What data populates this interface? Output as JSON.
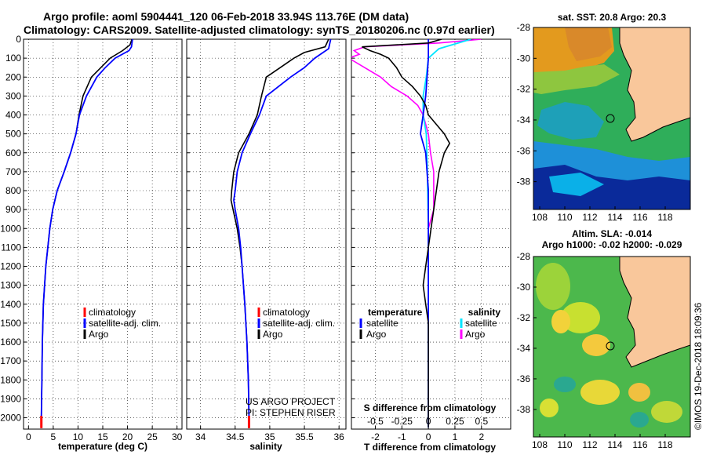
{
  "header": {
    "line1": "Argo profile: aoml 5904441_120 06-Feb-2018 33.94S 113.76E (DM data)",
    "line2": "Climatology: CARS2009. Satellite-adjusted climatology: synTS_20180206.nc (0.97d earlier)"
  },
  "depth_ticks": [
    "0",
    "100",
    "200",
    "300",
    "400",
    "500",
    "600",
    "700",
    "800",
    "900",
    "1000",
    "1100",
    "1200",
    "1300",
    "1400",
    "1500",
    "1600",
    "1700",
    "1800",
    "1900",
    "2000"
  ],
  "colors": {
    "climatology": "#ff0000",
    "satellite": "#0000ff",
    "argo": "#000000",
    "sat_salinity": "#00e5ff",
    "argo_salinity": "#ff00ff",
    "land": "#f9c79b"
  },
  "chart_data": [
    {
      "type": "line",
      "panel": "temperature",
      "xlabel": "temperature (deg C)",
      "xlim": [
        -1,
        31
      ],
      "xticks": [
        "0",
        "5",
        "10",
        "15",
        "20",
        "25",
        "30"
      ],
      "ylim": [
        2060,
        0
      ],
      "legend": [
        "climatology",
        "satellite-adj. clim.",
        "Argo"
      ],
      "series": [
        {
          "name": "satellite-adj. clim.",
          "depth": [
            0,
            40,
            60,
            100,
            150,
            200,
            300,
            400,
            500,
            600,
            700,
            800,
            900,
            1000,
            1200,
            1400,
            1600,
            1800,
            2000,
            2050
          ],
          "values": [
            21,
            20.8,
            20.3,
            17.5,
            15.5,
            13.8,
            11.7,
            10.3,
            9.6,
            8.5,
            7.2,
            5.8,
            4.9,
            4.3,
            3.5,
            3.0,
            2.8,
            2.7,
            2.6,
            2.6
          ]
        },
        {
          "name": "Argo",
          "depth": [
            0,
            30,
            60,
            100,
            200,
            300,
            400,
            500,
            600,
            700,
            800,
            900,
            1000,
            1200,
            1400,
            1600,
            1800,
            2000,
            2050
          ],
          "values": [
            20.9,
            20.5,
            19.0,
            16.5,
            12.7,
            11.0,
            10.2,
            9.6,
            8.5,
            7.2,
            5.8,
            4.9,
            4.3,
            3.5,
            3.0,
            2.8,
            2.7,
            2.6,
            2.6
          ]
        },
        {
          "name": "climatology",
          "depth": [
            0,
            40,
            100,
            200,
            400,
            600,
            800,
            1000,
            1400,
            2000,
            2050
          ],
          "values": [
            21,
            20.8,
            17.5,
            13.8,
            10.3,
            8.5,
            5.8,
            4.3,
            3.0,
            2.6,
            2.6
          ]
        }
      ]
    },
    {
      "type": "line",
      "panel": "salinity",
      "xlabel": "salinity",
      "xlim": [
        33.8,
        36.1
      ],
      "xticks": [
        "34",
        "34.5",
        "35",
        "35.5",
        "36"
      ],
      "ylim": [
        2060,
        0
      ],
      "legend": [
        "climatology",
        "satellite-adj. clim.",
        "Argo"
      ],
      "annotation": [
        "US ARGO PROJECT",
        "PI: STEPHEN RISER"
      ],
      "series": [
        {
          "name": "satellite-adj. clim.",
          "depth": [
            0,
            50,
            100,
            150,
            200,
            300,
            400,
            500,
            600,
            700,
            800,
            850,
            900,
            1000,
            1100,
            1200,
            1400,
            1600,
            1800,
            2000,
            2050
          ],
          "values": [
            35.88,
            35.85,
            35.65,
            35.5,
            35.3,
            34.95,
            34.85,
            34.72,
            34.6,
            34.53,
            34.5,
            34.48,
            34.5,
            34.55,
            34.58,
            34.6,
            34.64,
            34.67,
            34.69,
            34.7,
            34.7
          ]
        },
        {
          "name": "Argo",
          "depth": [
            0,
            40,
            70,
            100,
            150,
            200,
            300,
            400,
            500,
            600,
            700,
            800,
            850,
            900,
            1000,
            1100,
            1200,
            1400,
            1600,
            1800,
            2000,
            2050
          ],
          "values": [
            35.85,
            35.8,
            35.5,
            35.35,
            35.15,
            34.95,
            34.88,
            34.82,
            34.7,
            34.55,
            34.48,
            34.45,
            34.44,
            34.47,
            34.53,
            34.57,
            34.6,
            34.64,
            34.67,
            34.69,
            34.7,
            34.7
          ]
        },
        {
          "name": "climatology",
          "depth": [
            0,
            100,
            200,
            400,
            600,
            800,
            1000,
            1400,
            2000,
            2050
          ],
          "values": [
            35.88,
            35.65,
            35.3,
            34.85,
            34.6,
            34.5,
            34.55,
            34.64,
            34.7,
            34.7
          ]
        }
      ]
    },
    {
      "type": "line",
      "panel": "difference",
      "xlabel": "T difference from climatology",
      "xlabel2": "S difference from climatology",
      "xlim": [
        -2.9,
        3.1
      ],
      "xticks": [
        "-2",
        "-1",
        "0",
        "1",
        "2"
      ],
      "xticks_s": [
        "-0.5",
        "-0.25",
        "0",
        "0.25",
        "0.5"
      ],
      "ylim": [
        2060,
        0
      ],
      "legend_temperature": [
        "temperature",
        "satellite",
        "Argo"
      ],
      "legend_salinity": [
        "salinity",
        "satellite",
        "Argo"
      ],
      "series": [
        {
          "name": "T satellite",
          "depth": [
            0,
            100,
            300,
            400,
            500,
            600,
            800,
            1000,
            1500,
            2000,
            2050
          ],
          "values": [
            0,
            0,
            -0.1,
            -0.2,
            -0.3,
            -0.1,
            0,
            0,
            0,
            0,
            0
          ]
        },
        {
          "name": "T Argo",
          "depth": [
            0,
            20,
            40,
            60,
            80,
            100,
            150,
            200,
            250,
            300,
            350,
            400,
            450,
            500,
            550,
            600,
            700,
            800,
            900,
            1000,
            1100,
            1200,
            1300,
            1400,
            1500,
            1600,
            1800,
            2000,
            2050
          ],
          "values": [
            0.5,
            0,
            -2.5,
            -2.2,
            -1.8,
            -1.5,
            -1.2,
            -1.0,
            -0.6,
            -0.3,
            -0.1,
            0,
            0.3,
            0.6,
            0.8,
            0.6,
            0.4,
            0.3,
            0.2,
            0.1,
            0,
            -0.1,
            -0.2,
            -0.1,
            0,
            0,
            0,
            0,
            0
          ]
        },
        {
          "name": "S satellite",
          "depth": [
            0,
            50,
            100,
            200,
            300,
            400,
            500,
            700,
            1000,
            1500,
            2000,
            2050
          ],
          "values": [
            0.4,
            0.1,
            0,
            -0.02,
            -0.05,
            -0.05,
            -0.02,
            -0.01,
            0,
            0,
            0,
            0
          ]
        },
        {
          "name": "S Argo",
          "depth": [
            0,
            20,
            40,
            60,
            80,
            100,
            150,
            200,
            250,
            300,
            350,
            400,
            500,
            600,
            700,
            800,
            900,
            1000,
            1100,
            1200,
            1300,
            1400,
            1500,
            1600,
            1700,
            1800,
            1900,
            2000,
            2050
          ],
          "values": [
            0.5,
            0.1,
            -0.6,
            -0.7,
            -0.65,
            -0.75,
            -0.6,
            -0.45,
            -0.35,
            -0.2,
            -0.1,
            -0.05,
            0,
            0.02,
            0.05,
            0.05,
            0.05,
            0,
            0,
            0,
            0,
            0,
            0,
            0,
            0,
            0,
            0,
            0,
            0
          ]
        }
      ]
    },
    {
      "type": "heatmap",
      "panel": "sst_map",
      "title": "sat. SST: 20.8 Argo: 20.3",
      "xticks": [
        "108",
        "110",
        "112",
        "114",
        "116",
        "118"
      ],
      "yticks": [
        "-28",
        "-30",
        "-32",
        "-34",
        "-36",
        "-38"
      ],
      "xlim": [
        107.5,
        120
      ],
      "ylim": [
        -39.8,
        -28
      ],
      "float_position": {
        "lon": 113.76,
        "lat": -33.94
      }
    },
    {
      "type": "heatmap",
      "panel": "sla_map",
      "title": "Altim. SLA: -0.014",
      "subtitle": "Argo h1000: -0.02 h2000: -0.029",
      "xticks": [
        "108",
        "110",
        "112",
        "114",
        "116",
        "118"
      ],
      "yticks": [
        "-28",
        "-30",
        "-32",
        "-34",
        "-36",
        "-38"
      ],
      "xlim": [
        107.5,
        120
      ],
      "ylim": [
        -39.8,
        -28
      ],
      "float_position": {
        "lon": 113.76,
        "lat": -33.94
      }
    }
  ],
  "credit": "©IMOS 19-Dec-2018 18:09:36"
}
